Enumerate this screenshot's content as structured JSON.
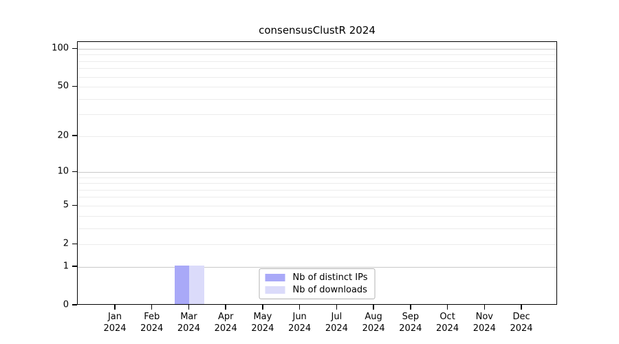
{
  "chart_data": {
    "type": "bar",
    "title": "consensusClustR 2024",
    "categories": [
      {
        "label": "Jan",
        "sublabel": "2024"
      },
      {
        "label": "Feb",
        "sublabel": "2024"
      },
      {
        "label": "Mar",
        "sublabel": "2024"
      },
      {
        "label": "Apr",
        "sublabel": "2024"
      },
      {
        "label": "May",
        "sublabel": "2024"
      },
      {
        "label": "Jun",
        "sublabel": "2024"
      },
      {
        "label": "Jul",
        "sublabel": "2024"
      },
      {
        "label": "Aug",
        "sublabel": "2024"
      },
      {
        "label": "Sep",
        "sublabel": "2024"
      },
      {
        "label": "Oct",
        "sublabel": "2024"
      },
      {
        "label": "Nov",
        "sublabel": "2024"
      },
      {
        "label": "Dec",
        "sublabel": "2024"
      }
    ],
    "series": [
      {
        "name": "Nb of distinct IPs",
        "color": "#a9a9f8",
        "values": [
          0,
          0,
          1,
          0,
          0,
          0,
          0,
          0,
          0,
          0,
          0,
          0
        ]
      },
      {
        "name": "Nb of downloads",
        "color": "#dbdbfa",
        "values": [
          0,
          0,
          1,
          0,
          0,
          0,
          0,
          0,
          0,
          0,
          0,
          0
        ]
      }
    ],
    "xlabel": "",
    "ylabel": "",
    "y_axis": {
      "scale": "log10(1+x)",
      "tick_labels": [
        0,
        1,
        2,
        5,
        10,
        20,
        50,
        100
      ],
      "major_gridlines": [
        1,
        10,
        100
      ],
      "minor_gridlines": [
        2,
        3,
        4,
        5,
        6,
        7,
        8,
        9,
        20,
        30,
        40,
        50,
        60,
        70,
        80,
        90
      ],
      "ylim": [
        0,
        114
      ]
    },
    "legend_position": "lower center inside plot",
    "grid": "horizontal only",
    "colors": {
      "major_grid": "#c8c8c8",
      "minor_grid": "#ececec",
      "axis": "#000000",
      "background": "#ffffff",
      "text": "#000000"
    }
  }
}
